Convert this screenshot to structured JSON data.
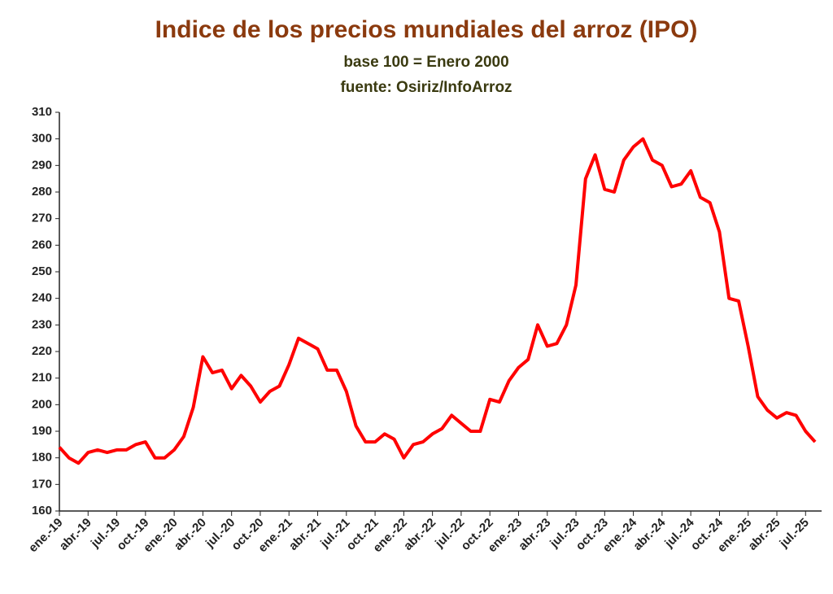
{
  "chart_data": {
    "type": "line",
    "title": "Indice de los precios mundiales del arroz (IPO)",
    "subtitle": "base 100 = Enero 2000",
    "source": "fuente: Osiriz/InfoArroz",
    "categories": [
      "ene.-19",
      null,
      null,
      "abr.-19",
      null,
      null,
      "jul.-19",
      null,
      null,
      "oct.-19",
      null,
      null,
      "ene.-20",
      null,
      null,
      "abr.-20",
      null,
      null,
      "jul.-20",
      null,
      null,
      "oct.-20",
      null,
      null,
      "ene.-21",
      null,
      null,
      "abr.-21",
      null,
      null,
      "jul.-21",
      null,
      null,
      "oct.-21",
      null,
      null,
      "ene.-22",
      null,
      null,
      "abr.-22",
      null,
      null,
      "jul.-22",
      null,
      null,
      "oct.-22",
      null,
      null,
      "ene.-23",
      null,
      null,
      "abr.-23",
      null,
      null,
      "jul.-23",
      null,
      null,
      "oct.-23",
      null,
      null,
      "ene.-24",
      null,
      null,
      "abr.-24",
      null,
      null,
      "jul.-24",
      null,
      null,
      "oct.-24",
      null,
      null,
      "ene.-25",
      null,
      null,
      "abr.-25",
      null,
      null,
      "jul.-25",
      null
    ],
    "values": [
      184,
      180,
      178,
      182,
      183,
      182,
      183,
      183,
      185,
      186,
      180,
      180,
      183,
      188,
      199,
      218,
      212,
      213,
      206,
      211,
      207,
      201,
      205,
      207,
      215,
      225,
      223,
      221,
      213,
      213,
      205,
      192,
      186,
      186,
      189,
      187,
      180,
      185,
      186,
      189,
      191,
      196,
      193,
      190,
      190,
      202,
      201,
      209,
      214,
      217,
      230,
      222,
      223,
      230,
      245,
      285,
      294,
      281,
      280,
      292,
      297,
      300,
      292,
      290,
      282,
      283,
      288,
      278,
      276,
      265,
      240,
      239,
      222,
      203,
      198,
      195,
      197,
      196,
      190,
      186
    ],
    "color": "#ff0000",
    "ylim": [
      160,
      310
    ],
    "yticks": [
      160,
      170,
      180,
      190,
      200,
      210,
      220,
      230,
      240,
      250,
      260,
      270,
      280,
      290,
      300,
      310
    ]
  }
}
